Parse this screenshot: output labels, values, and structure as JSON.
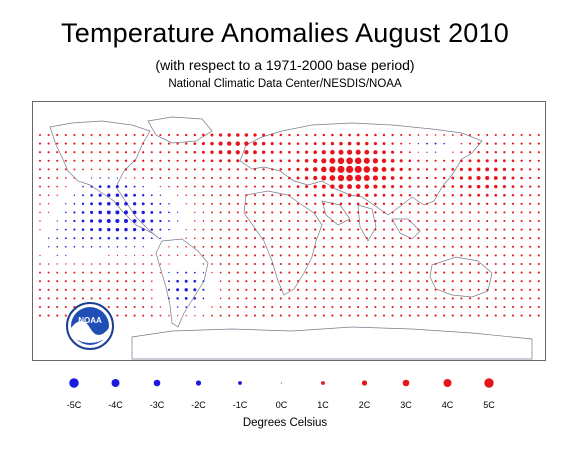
{
  "header": {
    "title": "Temperature Anomalies August 2010",
    "subtitle": "(with respect to a 1971-2000 base period)",
    "source": "National Climatic Data Center/NESDIS/NOAA"
  },
  "logo": {
    "text": "NOAA"
  },
  "legend": {
    "items": [
      {
        "label": "-5C",
        "value": -5
      },
      {
        "label": "-4C",
        "value": -4
      },
      {
        "label": "-3C",
        "value": -3
      },
      {
        "label": "-2C",
        "value": -2
      },
      {
        "label": "-1C",
        "value": -1
      },
      {
        "label": "0C",
        "value": 0
      },
      {
        "label": "1C",
        "value": 1
      },
      {
        "label": "2C",
        "value": 2
      },
      {
        "label": "3C",
        "value": 3
      },
      {
        "label": "4C",
        "value": 4
      },
      {
        "label": "5C",
        "value": 5
      }
    ],
    "unit_label": "Degrees Celsius"
  },
  "colors": {
    "warm": "#e8141b",
    "cool": "#1b1be0",
    "coastline": "#7a7a8c",
    "frame": "#666666"
  }
}
